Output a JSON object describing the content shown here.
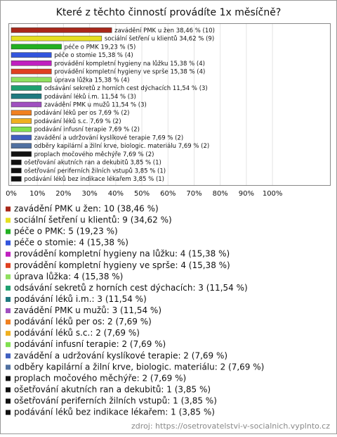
{
  "chart_data": {
    "type": "bar",
    "orientation": "horizontal",
    "title": "Které z těchto činností provádíte 1x měsíčně?",
    "categories": [
      "zavádění PMK u žen",
      "sociální šetření u klientů",
      "péče o PMK",
      "péče o stomie",
      "provádění kompletní hygieny na lůžku",
      "provádění kompletní hygieny ve sprše",
      "úprava lůžka",
      "odsávání sekretů z horních cest dýchacích",
      "podávání léků i.m.",
      "zavádění PMK u mužů",
      "podávání léků per os",
      "podávání léků s.c.",
      "podávání infusní terapie",
      "zavádění a udržování kyslíkové terapie",
      "odběry kapilární a žilní krve, biologic. materiálu",
      "proplach močového měchýře",
      "ošetřování akutních ran a dekubitů",
      "ošetřování periferních žilních vstupů",
      "podávání léků bez indikace lékařem"
    ],
    "values": [
      38.46,
      34.62,
      19.23,
      15.38,
      15.38,
      15.38,
      15.38,
      11.54,
      11.54,
      11.54,
      7.69,
      7.69,
      7.69,
      7.69,
      7.69,
      7.69,
      3.85,
      3.85,
      3.85
    ],
    "value_labels": [
      "38,46 % (10)",
      "34,62 % (9)",
      "19,23 % (5)",
      "15,38 % (4)",
      "15,38 % (4)",
      "15,38 % (4)",
      "15,38 % (4)",
      "11,54 % (3)",
      "11,54 % (3)",
      "11,54 % (3)",
      "7,69 % (2)",
      "7,69 % (2)",
      "7,69 % (2)",
      "7,69 % (2)",
      "7,69 % (2)",
      "7,69 % (2)",
      "3,85 % (1)",
      "3,85 % (1)",
      "3,85 % (1)"
    ],
    "colors": [
      "#a8281a",
      "#e6e020",
      "#22b022",
      "#3355dd",
      "#c020c0",
      "#e04020",
      "#90e060",
      "#20a070",
      "#207a80",
      "#a050c0",
      "#f08020",
      "#f0b020",
      "#80e050",
      "#4060c0",
      "#5070a0",
      "#111111",
      "#111111",
      "#111111",
      "#111111"
    ],
    "legend_labels": [
      "zavádění PMK u žen: 10 (38,46 %)",
      "sociální šetření u klientů: 9 (34,62 %)",
      "péče o PMK: 5 (19,23 %)",
      "péče o stomie: 4 (15,38 %)",
      "provádění kompletní hygieny na lůžku: 4 (15,38 %)",
      "provádění kompletní hygieny ve sprše: 4 (15,38 %)",
      "úprava lůžka: 4 (15,38 %)",
      "odsávání sekretů z horních cest dýchacích: 3 (11,54 %)",
      "podávání léků i.m.: 3 (11,54 %)",
      "zavádění PMK u mužů: 3 (11,54 %)",
      "podávání léků per os: 2 (7,69 %)",
      "podávání léků s.c.: 2 (7,69 %)",
      "podávání infusní terapie: 2 (7,69 %)",
      "zavádění a udržování kyslíkové terapie: 2 (7,69 %)",
      "odběry kapilární a žilní krve, biologic. materiálu: 2 (7,69 %)",
      "proplach močového měchýře: 2 (7,69 %)",
      "ošetřování akutních ran a dekubitů: 1 (3,85 %)",
      "ošetřování periferních žilních vstupů: 1 (3,85 %)",
      "podávání léků bez indikace lékařem: 1 (3,85 %)"
    ],
    "xlim": [
      0,
      122
    ],
    "xticks": [
      {
        "value": 0,
        "label": "0%"
      },
      {
        "value": 10,
        "label": "10%"
      },
      {
        "value": 20,
        "label": "20%"
      },
      {
        "value": 30,
        "label": "30%"
      },
      {
        "value": 40,
        "label": "40%"
      },
      {
        "value": 50,
        "label": "50%"
      },
      {
        "value": 60,
        "label": "60%"
      },
      {
        "value": 70,
        "label": "70%"
      },
      {
        "value": 80,
        "label": "80%"
      },
      {
        "value": 90,
        "label": "90%"
      },
      {
        "value": 100,
        "label": "100%"
      }
    ],
    "grid": true,
    "source": "zdroj: https://osetrovatelstvi-v-socialnich.vyplnto.cz"
  }
}
